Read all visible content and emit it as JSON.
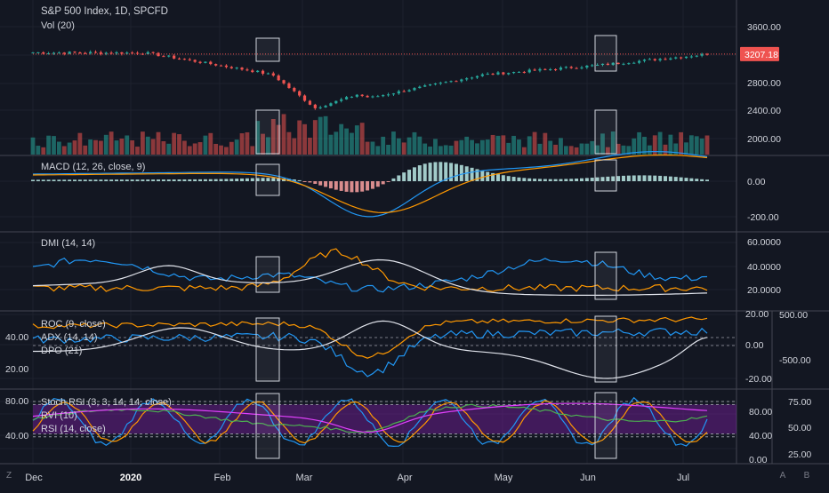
{
  "header": {
    "symbol_title": "S&P 500 Index, 1D, SPCFD",
    "volume_label": "Vol (20)"
  },
  "panes": {
    "macd_label": "MACD (12, 26, close, 9)",
    "dmi_label": "DMI (14, 14)",
    "roc_label": "ROC (9, close)",
    "adx_label": "ADX (14, 14)",
    "dpo_label": "DPO (21)",
    "stoch_label": "Stoch RSI (3, 3, 14, 14, close)",
    "rvi_label": "RVI (10)",
    "rsi_label": "RSI (14, close)"
  },
  "price_badge": "3207.18",
  "corner_buttons": {
    "zoom": "Z",
    "auto": "A",
    "b": "B"
  },
  "colors": {
    "background": "#131722",
    "up": "#26a69a",
    "down": "#ef5350",
    "orange": "#ff9800",
    "blue": "#2196f3",
    "white": "#e0e3eb",
    "purple_fill": "#7b1fa2"
  },
  "chart_data": [
    {
      "type": "candlestick",
      "title": "S&P 500 Index, 1D, SPCFD",
      "x_tick_labels": [
        "Dec",
        "2020",
        "Feb",
        "Mar",
        "Apr",
        "May",
        "Jun",
        "Jul"
      ],
      "y_tick_labels": [
        "3600.00",
        "2800.00",
        "2400.00",
        "2000.00"
      ],
      "last_price": 3207.18,
      "monthly_close": [
        {
          "month": "Dec",
          "close": 3230
        },
        {
          "month": "Jan",
          "close": 3225
        },
        {
          "month": "Feb",
          "close": 2954
        },
        {
          "month": "Mar",
          "close": 2585
        },
        {
          "month": "Apr",
          "close": 2912
        },
        {
          "month": "May",
          "close": 3044
        },
        {
          "month": "Jun",
          "close": 3207
        }
      ],
      "highlight_boxes": [
        "Feb",
        "Jun"
      ]
    },
    {
      "type": "bar",
      "title": "Vol (20)",
      "colored_by": "candle direction"
    },
    {
      "type": "line",
      "title": "MACD (12, 26, close, 9)",
      "y_tick_labels": [
        "0.00",
        "-200.00"
      ],
      "series": [
        {
          "name": "MACD",
          "color": "#2196f3"
        },
        {
          "name": "Signal",
          "color": "#ff9800"
        },
        {
          "name": "Histogram"
        }
      ]
    },
    {
      "type": "line",
      "title": "DMI (14, 14)",
      "y_tick_labels": [
        "60.0000",
        "40.0000",
        "20.0000"
      ]
    },
    {
      "type": "line",
      "title": "ROC (9, close) / ADX (14, 14) / DPO (21)",
      "y_tick_labels_left": [
        "40.00",
        "20.00"
      ],
      "y_tick_labels_mid": [
        "20.00",
        "0.00",
        "-20.00"
      ],
      "y_tick_labels_right": [
        "500.00",
        "-500.00"
      ]
    },
    {
      "type": "line",
      "title": "Stoch RSI (3, 3, 14, 14, close) / RVI (10) / RSI (14, close)",
      "y_tick_labels_left": [
        "80.00",
        "40.00"
      ],
      "y_tick_labels_mid": [
        "80.00",
        "40.00",
        "0.00"
      ],
      "y_tick_labels_right": [
        "75.00",
        "50.00",
        "25.00"
      ]
    }
  ]
}
